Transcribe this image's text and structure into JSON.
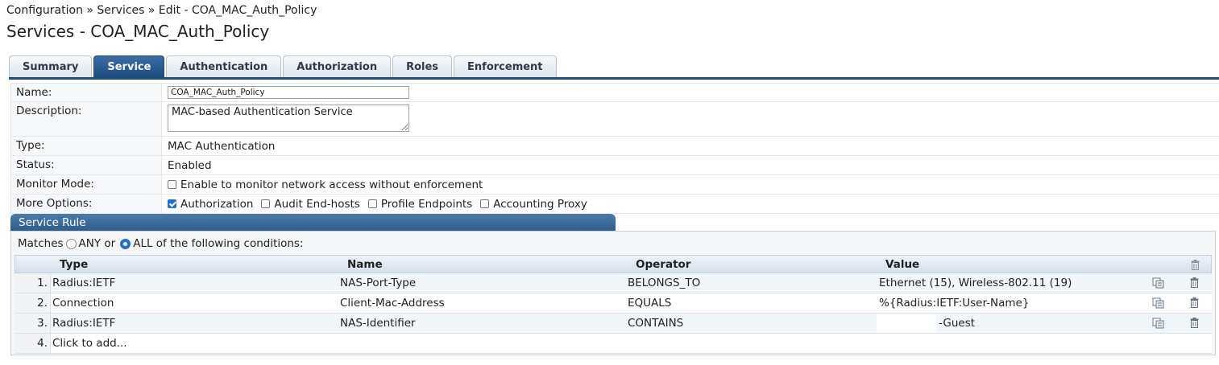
{
  "breadcrumb": "Configuration » Services » Edit - COA_MAC_Auth_Policy",
  "title": "Services - COA_MAC_Auth_Policy",
  "tabs": [
    {
      "label": "Summary"
    },
    {
      "label": "Service",
      "active": true
    },
    {
      "label": "Authentication"
    },
    {
      "label": "Authorization"
    },
    {
      "label": "Roles"
    },
    {
      "label": "Enforcement"
    }
  ],
  "form": {
    "name_label": "Name:",
    "name_value": "COA_MAC_Auth_Policy",
    "description_label": "Description:",
    "description_value": "MAC-based Authentication Service",
    "type_label": "Type:",
    "type_value": "MAC Authentication",
    "status_label": "Status:",
    "status_value": "Enabled",
    "monitor_label": "Monitor Mode:",
    "monitor_option": "Enable to monitor network access without enforcement",
    "monitor_checked": false,
    "more_label": "More Options:",
    "more_options": [
      {
        "label": "Authorization",
        "checked": true
      },
      {
        "label": "Audit End-hosts",
        "checked": false
      },
      {
        "label": "Profile Endpoints",
        "checked": false
      },
      {
        "label": "Accounting Proxy",
        "checked": false
      }
    ]
  },
  "service_rule": {
    "header": "Service Rule",
    "matches_prefix": "Matches",
    "any_label": "ANY or",
    "all_label": "ALL of the following conditions:",
    "selected": "ALL",
    "columns": {
      "type": "Type",
      "name": "Name",
      "operator": "Operator",
      "value": "Value"
    },
    "rows": [
      {
        "num": "1.",
        "type": "Radius:IETF",
        "name": "NAS-Port-Type",
        "operator": "BELONGS_TO",
        "value": "Ethernet (15), Wireless-802.11 (19)"
      },
      {
        "num": "2.",
        "type": "Connection",
        "name": "Client-Mac-Address",
        "operator": "EQUALS",
        "value": "%{Radius:IETF:User-Name}"
      },
      {
        "num": "3.",
        "type": "Radius:IETF",
        "name": "NAS-Identifier",
        "operator": "CONTAINS",
        "value": "-Guest"
      }
    ],
    "add_row": {
      "num": "4.",
      "label": "Click to add..."
    }
  },
  "icons": {
    "copy": "copy-icon",
    "delete": "trash-icon"
  },
  "colors": {
    "accent": "#1d4a7c",
    "header_blue": "#2e5d8c",
    "checkbox": "#1f6fd6"
  }
}
